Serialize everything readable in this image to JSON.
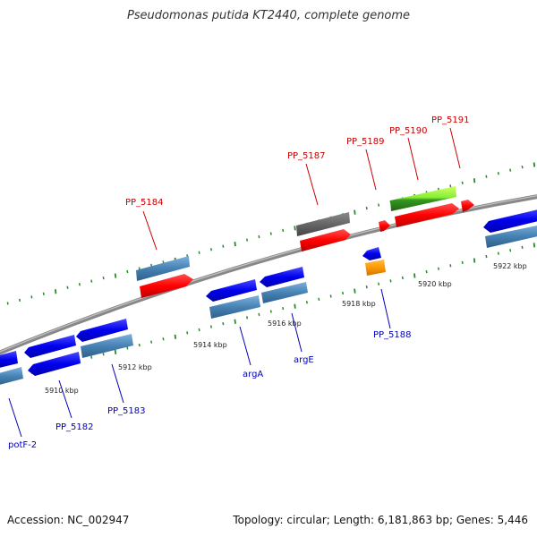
{
  "title": "Pseudomonas putida KT2440, complete genome",
  "footer": {
    "accession": "Accession: NC_002947",
    "topology": "Topology: circular; Length: 6,181,863 bp; Genes: 5,446"
  },
  "scale_labels": [
    "5910 kbp",
    "5912 kbp",
    "5914 kbp",
    "5916 kbp",
    "5918 kbp",
    "5920 kbp",
    "5922 kbp"
  ],
  "gene_labels": {
    "pp5184": "PP_5184",
    "pp5187": "PP_5187",
    "pp5189": "PP_5189",
    "pp5190": "PP_5190",
    "pp5191": "PP_5191",
    "pp5188": "PP_5188",
    "potf2": "potF-2",
    "pp5182": "PP_5182",
    "pp5183": "PP_5183",
    "arga": "argA",
    "arge": "argE"
  },
  "colors": {
    "forward_label": "#cc0000",
    "reverse_label": "#0000bb",
    "backbone": "#8a8a8a",
    "tick": "#2a8a2a"
  }
}
